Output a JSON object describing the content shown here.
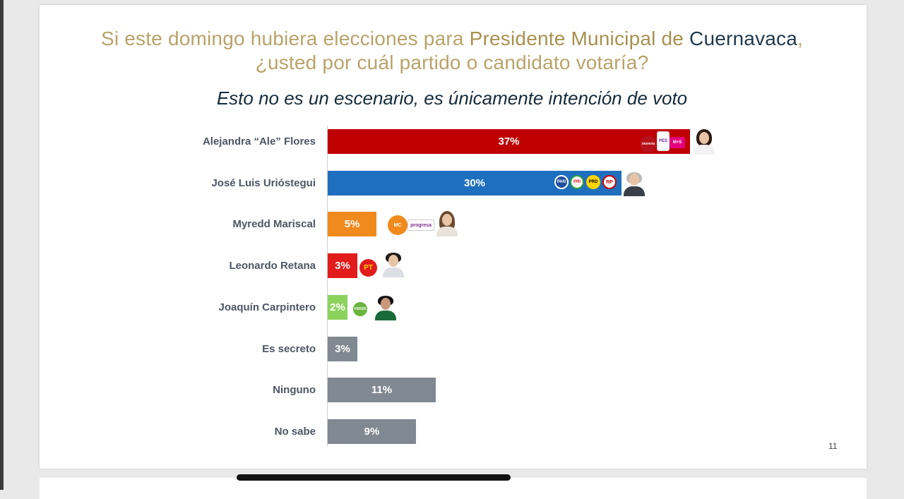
{
  "title": {
    "part1": "Si este domingo hubiera elecciones para ",
    "part2_bold": "Presidente Municipal de ",
    "part3_city": "Cuernavaca",
    "part4": ",",
    "line2": "¿usted por cuál partido o candidato votaría?"
  },
  "subtitle": "Esto no es un escenario, es únicamente intención de voto",
  "page_number": "11",
  "colors": {
    "red": "#c00000",
    "blue": "#1f6fbf",
    "orange": "#f08a1c",
    "pt_red": "#e21b1b",
    "green": "#8cd35e",
    "gray": "#808891"
  },
  "chart_data": {
    "type": "bar",
    "orientation": "horizontal",
    "title": "Si este domingo hubiera elecciones para Presidente Municipal de Cuernavaca, ¿usted por cuál partido o candidato votaría?",
    "subtitle": "Esto no es un escenario, es únicamente intención de voto",
    "categories": [
      "Alejandra “Ale” Flores",
      "José Luis Urióstegui",
      "Myredd Mariscal",
      "Leonardo Retana",
      "Joaquín Carpintero",
      "Es secreto",
      "Ninguno",
      "No sabe"
    ],
    "values": [
      37,
      30,
      5,
      3,
      2,
      3,
      11,
      9
    ],
    "value_labels": [
      "37%",
      "30%",
      "5%",
      "3%",
      "2%",
      "3%",
      "11%",
      "9%"
    ],
    "bar_colors": [
      "#c00000",
      "#1f6fbf",
      "#f08a1c",
      "#e21b1b",
      "#8cd35e",
      "#808891",
      "#808891",
      "#808891"
    ],
    "unit": "%",
    "xlim": [
      0,
      40
    ]
  },
  "logos": {
    "ale": [
      "morena-logo",
      "pes-logo",
      "mas-logo"
    ],
    "ale_text": [
      "morena",
      "PES",
      "M+S"
    ],
    "jose": [
      "pan-logo",
      "pri-logo",
      "prd-logo",
      "rp-logo"
    ],
    "jose_text": [
      "PAN",
      "PRI",
      "PRD",
      "RP"
    ],
    "myredd": [
      "mc-logo",
      "progresa-logo"
    ],
    "myredd_text": [
      "MC",
      "progresa"
    ],
    "leonardo": [
      "pt-logo"
    ],
    "leonardo_text": [
      "PT"
    ],
    "joaquin": [
      "verde-logo"
    ],
    "joaquin_text": [
      "VERDE"
    ]
  }
}
